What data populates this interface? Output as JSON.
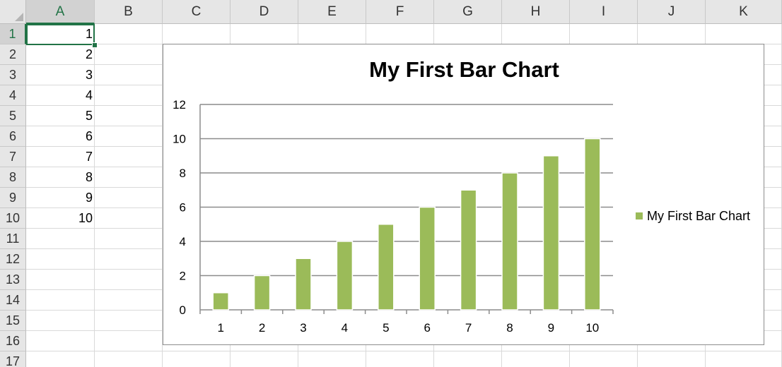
{
  "sheet": {
    "columns": [
      "A",
      "B",
      "C",
      "D",
      "E",
      "F",
      "G",
      "H",
      "I",
      "J",
      "K"
    ],
    "rows": [
      "1",
      "2",
      "3",
      "4",
      "5",
      "6",
      "7",
      "8",
      "9",
      "10",
      "11",
      "12",
      "13",
      "14",
      "15",
      "16",
      "17"
    ],
    "column_a_values": [
      "1",
      "2",
      "3",
      "4",
      "5",
      "6",
      "7",
      "8",
      "9",
      "10"
    ],
    "selected_cell": "A1"
  },
  "colors": {
    "bar": "#9bbb59",
    "selection": "#217346",
    "gridline": "#8c8c8c"
  },
  "chart_data": {
    "type": "bar",
    "title": "My First Bar Chart",
    "categories": [
      "1",
      "2",
      "3",
      "4",
      "5",
      "6",
      "7",
      "8",
      "9",
      "10"
    ],
    "series": [
      {
        "name": "My First Bar Chart",
        "values": [
          1,
          2,
          3,
          4,
          5,
          6,
          7,
          8,
          9,
          10
        ]
      }
    ],
    "ylim": [
      0,
      12
    ],
    "yticks": [
      "0",
      "2",
      "4",
      "6",
      "8",
      "10",
      "12"
    ],
    "grid": true,
    "legend": "right"
  }
}
